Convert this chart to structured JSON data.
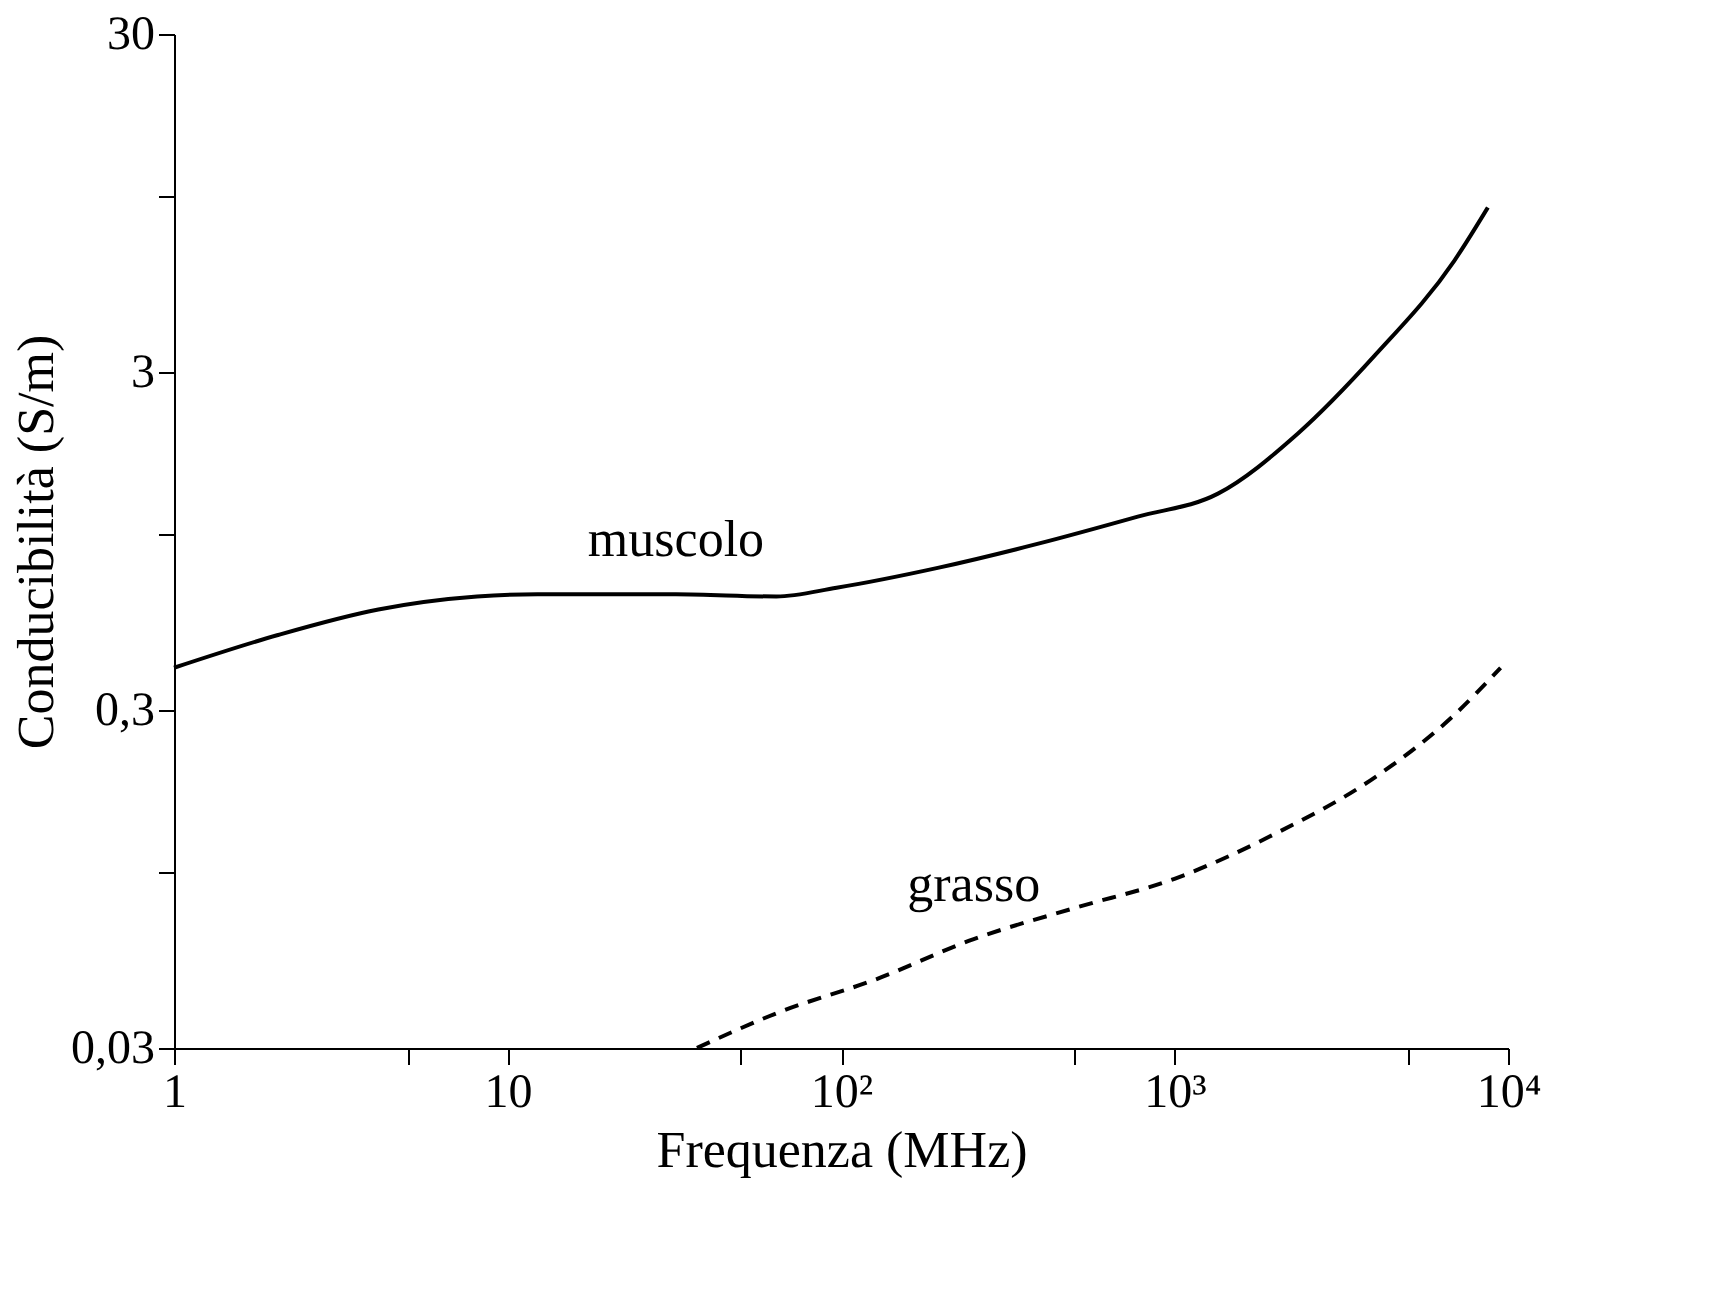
{
  "chart_data": {
    "type": "line",
    "xlabel": "Frequenza (MHz)",
    "ylabel": "Conducibilità (S/m)",
    "log": "xy",
    "grid": false,
    "legend": false,
    "xlim": [
      1,
      10000
    ],
    "ylim": [
      0.03,
      30
    ],
    "xticks": [
      1,
      10,
      {
        "value": 100,
        "label": "10²"
      },
      {
        "value": 1000,
        "label": "10³"
      },
      {
        "value": 10000,
        "label": "10⁴"
      },
      {
        "value": 5,
        "label": null
      },
      {
        "value": 50,
        "label": null
      },
      {
        "value": 500,
        "label": null
      },
      {
        "value": 5000,
        "label": null
      }
    ],
    "yticks": [
      {
        "value": 0.03,
        "label": "0,03"
      },
      {
        "value": 0.3,
        "label": "0,3"
      },
      3,
      30,
      {
        "value": 0.1,
        "label": null
      },
      {
        "value": 1,
        "label": null
      },
      {
        "value": 10,
        "label": null
      }
    ],
    "series": [
      {
        "name": "muscolo",
        "color": "#000000",
        "line_style": "solid",
        "x": [
          1,
          2.05,
          4.1,
          8.1,
          12.3,
          32,
          64,
          97,
          195,
          388,
          776,
          1350,
          2340,
          4000,
          6900,
          8700
        ],
        "values": [
          0.4,
          0.5,
          0.595,
          0.65,
          0.66,
          0.66,
          0.65,
          0.69,
          0.79,
          0.93,
          1.12,
          1.31,
          1.97,
          3.37,
          6.4,
          9.2
        ]
      },
      {
        "name": "grasso",
        "color": "#000000",
        "line_style": "dashed",
        "x": [
          37,
          64,
          128,
          250,
          505,
          1000,
          2000,
          4000,
          6900,
          9500
        ],
        "values": [
          0.03,
          0.038,
          0.048,
          0.063,
          0.078,
          0.095,
          0.129,
          0.19,
          0.29,
          0.4
        ]
      }
    ]
  }
}
